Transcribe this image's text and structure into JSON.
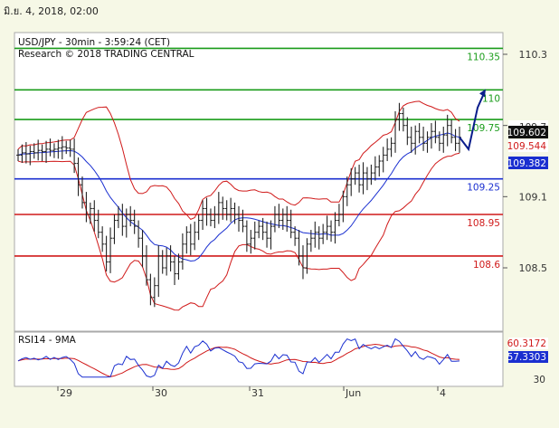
{
  "header": {
    "date": "มิ.ย. 4, 2018, 02:00"
  },
  "chart_data": {
    "type": "candlestick",
    "symbol_line": "USD/JPY - 30min - 3:59:24 (CET)",
    "research_line": "Research © 2018 TRADING CENTRAL",
    "y_ticks": [
      "110.3",
      "109.7",
      "109.1",
      "108.5"
    ],
    "x_ticks": [
      "29",
      "30",
      "31",
      "Jun",
      "4"
    ],
    "levels": [
      {
        "value": 110.35,
        "label": "110.35",
        "color": "#1a9c1a"
      },
      {
        "value": 110.0,
        "label": "110",
        "color": "#1a9c1a"
      },
      {
        "value": 109.75,
        "label": "109.75",
        "color": "#1a9c1a"
      },
      {
        "value": 109.25,
        "label": "109.25",
        "color": "#1a2fd0"
      },
      {
        "value": 108.95,
        "label": "108.95",
        "color": "#d01a1a"
      },
      {
        "value": 108.6,
        "label": "108.6",
        "color": "#d01a1a"
      }
    ],
    "price_tags": [
      {
        "label": "109.7",
        "value": 109.7,
        "bg": "#ffffff",
        "fg": "#333333"
      },
      {
        "label": "109.602",
        "value": 109.602,
        "bg": "#111111",
        "fg": "#ffffff"
      },
      {
        "label": "109.544",
        "value": 109.544,
        "bg": "#ffffff",
        "fg": "#d01a1a"
      },
      {
        "label": "109.382",
        "value": 109.382,
        "bg": "#1a2fd0",
        "fg": "#ffffff"
      }
    ],
    "closes": [
      109.45,
      109.47,
      109.46,
      109.48,
      109.47,
      109.49,
      109.48,
      109.5,
      109.49,
      109.5,
      109.51,
      109.52,
      109.51,
      109.5,
      109.38,
      109.2,
      109.05,
      108.95,
      109.0,
      108.9,
      108.8,
      108.7,
      108.55,
      108.75,
      108.9,
      108.95,
      108.85,
      108.95,
      108.9,
      108.85,
      108.75,
      108.6,
      108.4,
      108.25,
      108.35,
      108.6,
      108.5,
      108.6,
      108.55,
      108.45,
      108.55,
      108.7,
      108.8,
      108.7,
      108.8,
      108.9,
      109.0,
      108.95,
      108.9,
      108.95,
      109.05,
      109.0,
      108.95,
      109.0,
      108.95,
      108.9,
      108.85,
      108.7,
      108.75,
      108.8,
      108.85,
      108.8,
      108.75,
      108.85,
      108.95,
      108.9,
      108.95,
      108.9,
      108.8,
      108.75,
      108.6,
      108.5,
      108.7,
      108.75,
      108.8,
      108.75,
      108.8,
      108.85,
      108.8,
      108.9,
      108.95,
      109.1,
      109.2,
      109.25,
      109.3,
      109.2,
      109.3,
      109.25,
      109.3,
      109.35,
      109.4,
      109.45,
      109.5,
      109.55,
      109.75,
      109.8,
      109.7,
      109.6,
      109.55,
      109.65,
      109.6,
      109.55,
      109.6,
      109.65,
      109.6,
      109.55,
      109.62,
      109.7,
      109.6,
      109.55,
      109.6
    ],
    "rsi": {
      "label": "RSI14 - 9MA",
      "rsi_tag": "60.3172",
      "ma_tag": "57.3303",
      "y_tick": "30"
    }
  }
}
